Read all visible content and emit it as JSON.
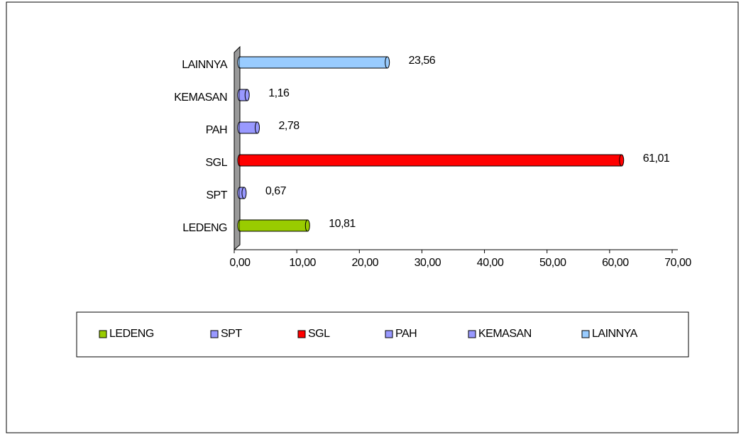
{
  "chart_data": {
    "type": "bar",
    "orientation": "horizontal",
    "categories": [
      "LEDENG",
      "SPT",
      "SGL",
      "PAH",
      "KEMASAN",
      "LAINNYA"
    ],
    "values": [
      10.81,
      0.67,
      61.01,
      2.78,
      1.16,
      23.56
    ],
    "value_labels": [
      "10,81",
      "0,67",
      "61,01",
      "2,78",
      "1,16",
      "23,56"
    ],
    "colors": [
      "#99cc00",
      "#9999ff",
      "#ff0000",
      "#9999ff",
      "#9999ff",
      "#99ccff"
    ],
    "xlim": [
      0,
      70
    ],
    "xticks": [
      {
        "value": 0,
        "label": "0,00"
      },
      {
        "value": 10,
        "label": "10,00"
      },
      {
        "value": 20,
        "label": "20,00"
      },
      {
        "value": 30,
        "label": "30,00"
      },
      {
        "value": 40,
        "label": "40,00"
      },
      {
        "value": 50,
        "label": "50,00"
      },
      {
        "value": 60,
        "label": "60,00"
      },
      {
        "value": 70,
        "label": "70,00"
      }
    ],
    "legend": "bottom"
  }
}
